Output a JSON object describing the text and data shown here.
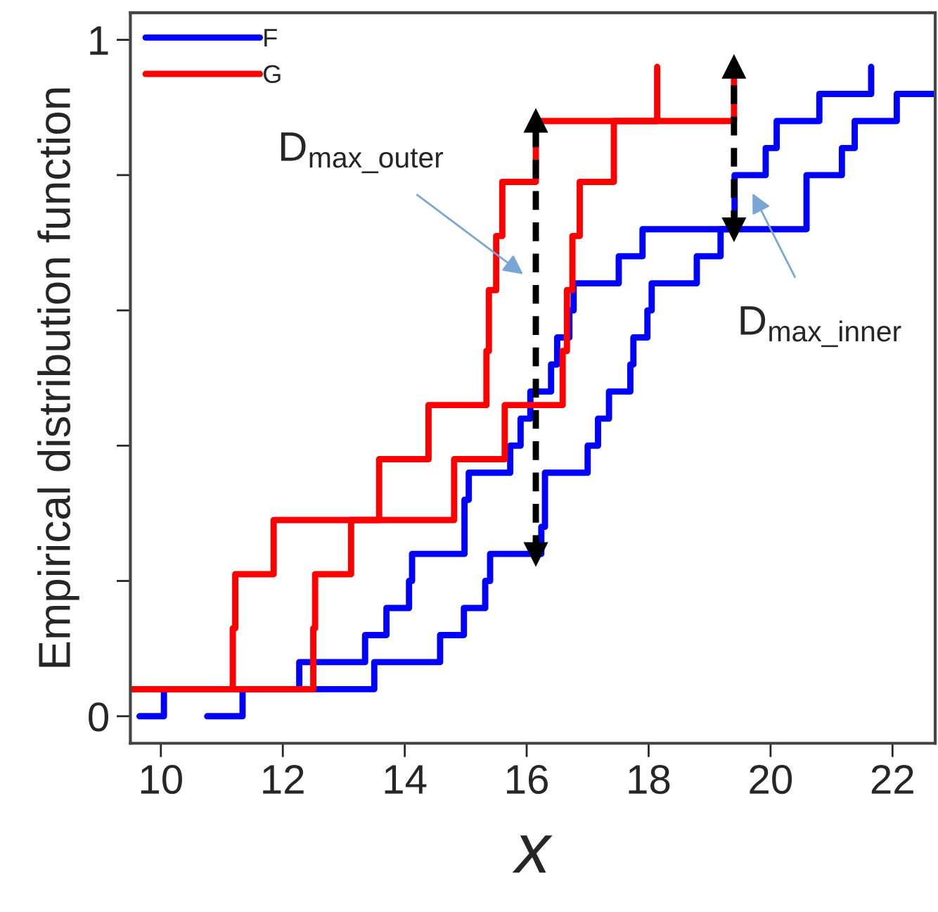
{
  "chart_data": {
    "type": "step",
    "xlabel": "x",
    "ylabel": "Empirical distribution function",
    "xlim": [
      9.5,
      22.7
    ],
    "xticks": [
      10,
      12,
      14,
      16,
      18,
      20,
      22
    ],
    "ylim": [
      -0.04,
      1.04
    ],
    "yticks": [
      0,
      {
        "value": 0.2,
        "label": null
      },
      {
        "value": 0.4,
        "label": null
      },
      {
        "value": 0.6,
        "label": null
      },
      {
        "value": 0.8,
        "label": null
      },
      1
    ],
    "grid": false,
    "legend": "top left",
    "series": [
      {
        "name": "F",
        "color": "#0000ff",
        "x": [
          9.65,
          10.05,
          12.27,
          13.35,
          13.7,
          14.07,
          14.12,
          14.98,
          15.05,
          15.73,
          15.9,
          16.06,
          16.4,
          16.5,
          16.7,
          16.77,
          17.51,
          17.9,
          19.41,
          19.92,
          20.1,
          20.8,
          21.65
        ],
        "values": [
          0,
          0.04,
          0.08,
          0.12,
          0.16,
          0.2,
          0.24,
          0.32,
          0.36,
          0.4,
          0.44,
          0.48,
          0.52,
          0.56,
          0.6,
          0.64,
          0.68,
          0.72,
          0.8,
          0.84,
          0.88,
          0.92,
          0.96
        ]
      },
      {
        "color": "#0000ff",
        "x": [
          10.76,
          11.34,
          13.5,
          14.58,
          14.97,
          15.32,
          15.4,
          16.24,
          16.3,
          17.0,
          17.17,
          17.35,
          17.7,
          17.75,
          17.98,
          18.05,
          18.79,
          19.18,
          20.59,
          21.17,
          21.38,
          22.07,
          22.7
        ],
        "values": [
          0,
          0.04,
          0.08,
          0.12,
          0.16,
          0.2,
          0.24,
          0.28,
          0.36,
          0.4,
          0.44,
          0.48,
          0.52,
          0.56,
          0.6,
          0.64,
          0.68,
          0.72,
          0.8,
          0.84,
          0.88,
          0.92,
          0.92
        ]
      },
      {
        "name": "G",
        "color": "#ff0000",
        "x": [
          9.5,
          11.18,
          11.22,
          11.85,
          13.58,
          14.39,
          15.34,
          15.38,
          15.5,
          15.6,
          16.15,
          18.14
        ],
        "values": [
          0.04,
          0.13,
          0.21,
          0.29,
          0.38,
          0.46,
          0.54,
          0.63,
          0.71,
          0.79,
          0.88,
          0.96
        ]
      },
      {
        "color": "#ff0000",
        "x": [
          9.5,
          12.5,
          12.53,
          13.12,
          14.81,
          15.64,
          16.59,
          16.66,
          16.75,
          16.87,
          17.43,
          19.4
        ],
        "values": [
          0.04,
          0.13,
          0.21,
          0.29,
          0.38,
          0.46,
          0.54,
          0.63,
          0.71,
          0.79,
          0.88,
          0.96
        ]
      },
      {
        "type": "line",
        "color": "#000000",
        "line_style": "dashed",
        "marker": "triangle",
        "x": [
          16.15,
          16.15
        ],
        "values": [
          0.24,
          0.88
        ]
      },
      {
        "type": "line",
        "color": "#000000",
        "line_style": "dashed",
        "marker": "triangle",
        "x": [
          19.4,
          19.4
        ],
        "values": [
          0.72,
          0.96
        ]
      }
    ],
    "annotations": [
      "D$_{max_outer}$",
      "D$_{max_inner}$"
    ]
  }
}
